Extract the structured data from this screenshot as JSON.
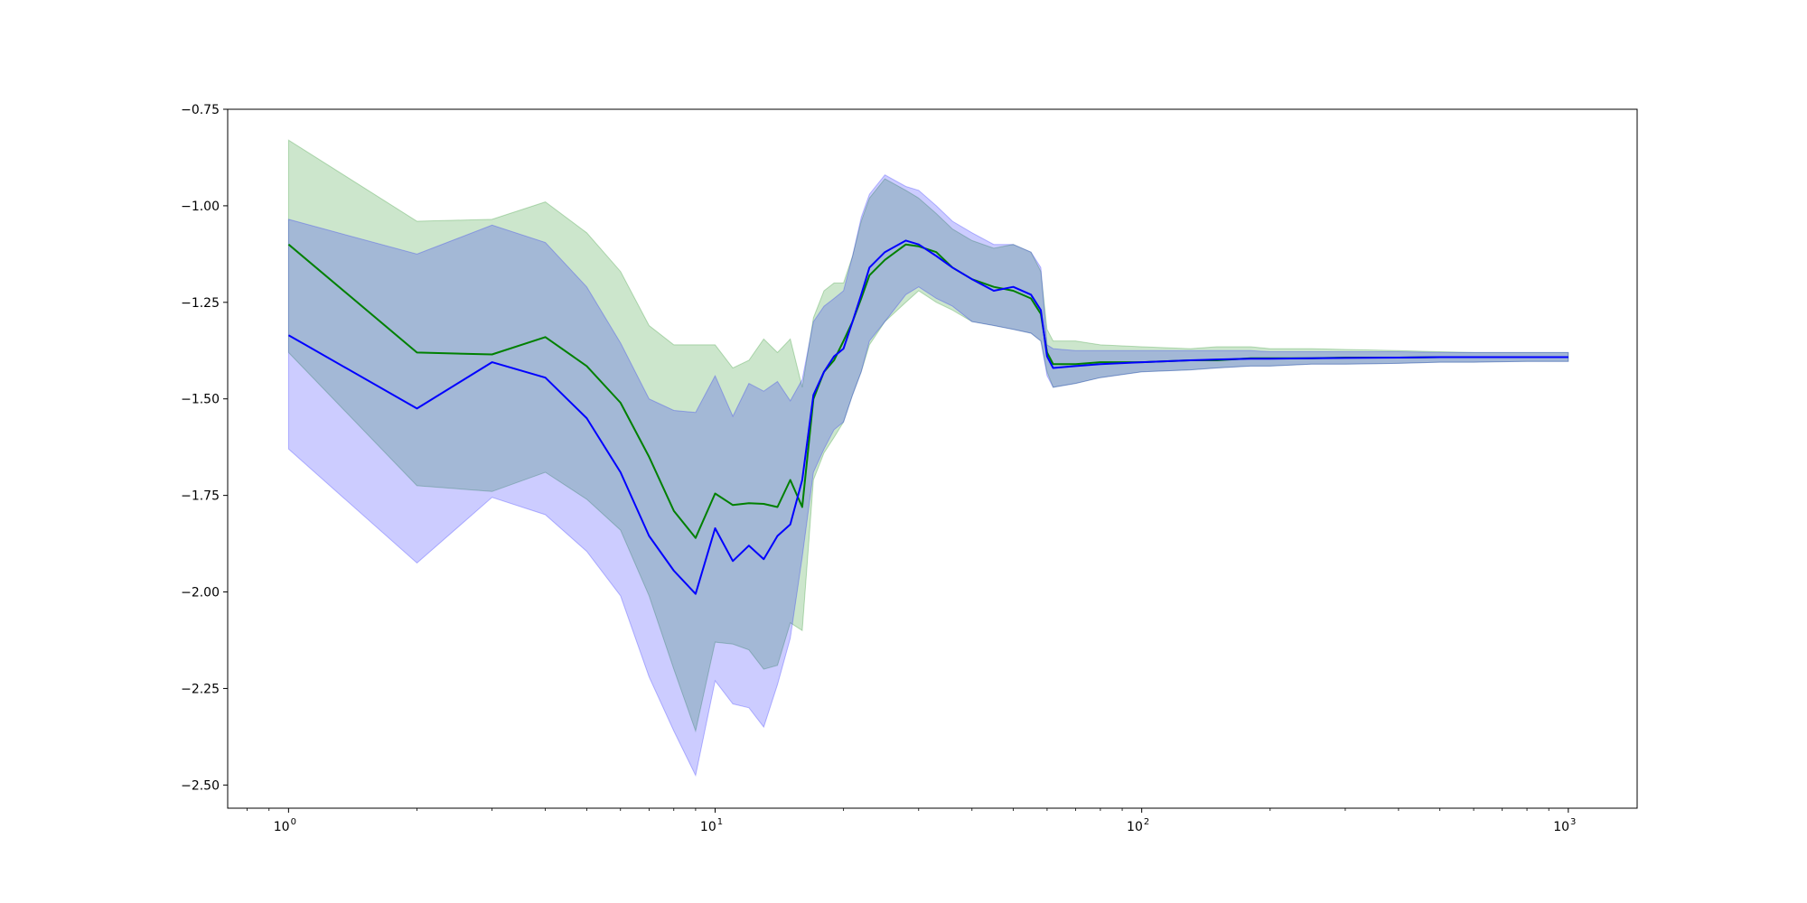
{
  "chart_data": {
    "type": "line",
    "title": "",
    "xlabel": "",
    "ylabel": "",
    "x_scale": "log",
    "xlim": [
      0.72,
      1450
    ],
    "ylim": [
      -2.56,
      -0.75
    ],
    "y_ticks": [
      -0.75,
      -1.0,
      -1.25,
      -1.5,
      -1.75,
      -2.0,
      -2.25,
      -2.5
    ],
    "y_tick_labels": [
      "−0.75",
      "−1.00",
      "−1.25",
      "−1.50",
      "−1.75",
      "−2.00",
      "−2.25",
      "−2.50"
    ],
    "x_ticks": [
      {
        "value": 1,
        "base": "10",
        "exp": "0"
      },
      {
        "value": 10,
        "base": "10",
        "exp": "1"
      },
      {
        "value": 100,
        "base": "10",
        "exp": "2"
      },
      {
        "value": 1000,
        "base": "10",
        "exp": "3"
      }
    ],
    "grid": false,
    "legend": "none",
    "series": [
      {
        "color": "#008000",
        "band_color": "#008000",
        "band_opacity": 0.2,
        "x": [
          1,
          2,
          3,
          4,
          5,
          6,
          7,
          8,
          9,
          10,
          11,
          12,
          13,
          14,
          15,
          16,
          17,
          18,
          19,
          20,
          21,
          22,
          23,
          25,
          28,
          30,
          33,
          36,
          40,
          45,
          50,
          55,
          58,
          60,
          62,
          70,
          80,
          100,
          130,
          150,
          180,
          200,
          250,
          300,
          400,
          500,
          600,
          800,
          1000
        ],
        "y": [
          -1.1,
          -1.38,
          -1.385,
          -1.34,
          -1.415,
          -1.51,
          -1.65,
          -1.79,
          -1.86,
          -1.745,
          -1.775,
          -1.77,
          -1.772,
          -1.78,
          -1.71,
          -1.78,
          -1.5,
          -1.43,
          -1.4,
          -1.35,
          -1.3,
          -1.24,
          -1.18,
          -1.14,
          -1.1,
          -1.105,
          -1.12,
          -1.16,
          -1.19,
          -1.21,
          -1.22,
          -1.24,
          -1.28,
          -1.38,
          -1.41,
          -1.41,
          -1.405,
          -1.405,
          -1.4,
          -1.4,
          -1.395,
          -1.395,
          -1.395,
          -1.393,
          -1.393,
          -1.392,
          -1.392,
          -1.392,
          -1.392
        ],
        "lower": [
          -1.38,
          -1.725,
          -1.74,
          -1.69,
          -1.76,
          -1.84,
          -2.01,
          -2.2,
          -2.36,
          -2.13,
          -2.135,
          -2.15,
          -2.2,
          -2.19,
          -2.08,
          -2.1,
          -1.71,
          -1.64,
          -1.6,
          -1.56,
          -1.49,
          -1.43,
          -1.36,
          -1.3,
          -1.25,
          -1.22,
          -1.25,
          -1.27,
          -1.3,
          -1.31,
          -1.32,
          -1.33,
          -1.35,
          -1.43,
          -1.47,
          -1.46,
          -1.445,
          -1.43,
          -1.425,
          -1.42,
          -1.415,
          -1.415,
          -1.41,
          -1.41,
          -1.408,
          -1.405,
          -1.405,
          -1.403,
          -1.403
        ],
        "upper": [
          -0.83,
          -1.04,
          -1.035,
          -0.99,
          -1.07,
          -1.17,
          -1.31,
          -1.36,
          -1.36,
          -1.36,
          -1.42,
          -1.4,
          -1.345,
          -1.38,
          -1.345,
          -1.47,
          -1.29,
          -1.22,
          -1.2,
          -1.2,
          -1.13,
          -1.04,
          -0.98,
          -0.93,
          -0.96,
          -0.98,
          -1.02,
          -1.06,
          -1.09,
          -1.11,
          -1.1,
          -1.12,
          -1.17,
          -1.32,
          -1.35,
          -1.35,
          -1.36,
          -1.365,
          -1.37,
          -1.365,
          -1.365,
          -1.37,
          -1.37,
          -1.372,
          -1.375,
          -1.378,
          -1.38,
          -1.38,
          -1.38
        ]
      },
      {
        "color": "#0000ff",
        "band_color": "#0000ff",
        "band_opacity": 0.2,
        "x": [
          1,
          2,
          3,
          4,
          5,
          6,
          7,
          8,
          9,
          10,
          11,
          12,
          13,
          14,
          15,
          16,
          17,
          18,
          19,
          20,
          21,
          22,
          23,
          25,
          28,
          30,
          33,
          36,
          40,
          45,
          50,
          55,
          58,
          60,
          62,
          70,
          80,
          100,
          130,
          150,
          180,
          200,
          250,
          300,
          400,
          500,
          600,
          800,
          1000
        ],
        "y": [
          -1.335,
          -1.525,
          -1.405,
          -1.445,
          -1.55,
          -1.69,
          -1.855,
          -1.945,
          -2.005,
          -1.835,
          -1.92,
          -1.88,
          -1.915,
          -1.855,
          -1.825,
          -1.71,
          -1.49,
          -1.43,
          -1.39,
          -1.37,
          -1.3,
          -1.23,
          -1.16,
          -1.12,
          -1.09,
          -1.1,
          -1.13,
          -1.16,
          -1.19,
          -1.22,
          -1.21,
          -1.23,
          -1.27,
          -1.39,
          -1.42,
          -1.415,
          -1.41,
          -1.405,
          -1.4,
          -1.398,
          -1.396,
          -1.396,
          -1.395,
          -1.394,
          -1.393,
          -1.392,
          -1.392,
          -1.392,
          -1.392
        ],
        "lower": [
          -1.63,
          -1.925,
          -1.755,
          -1.8,
          -1.895,
          -2.01,
          -2.22,
          -2.36,
          -2.475,
          -2.23,
          -2.29,
          -2.3,
          -2.35,
          -2.24,
          -2.12,
          -1.91,
          -1.69,
          -1.63,
          -1.58,
          -1.56,
          -1.49,
          -1.43,
          -1.35,
          -1.3,
          -1.23,
          -1.21,
          -1.24,
          -1.26,
          -1.3,
          -1.31,
          -1.32,
          -1.33,
          -1.35,
          -1.44,
          -1.47,
          -1.46,
          -1.445,
          -1.43,
          -1.425,
          -1.42,
          -1.415,
          -1.415,
          -1.41,
          -1.41,
          -1.408,
          -1.405,
          -1.405,
          -1.403,
          -1.403
        ],
        "upper": [
          -1.035,
          -1.125,
          -1.05,
          -1.095,
          -1.21,
          -1.355,
          -1.5,
          -1.53,
          -1.535,
          -1.44,
          -1.545,
          -1.46,
          -1.48,
          -1.455,
          -1.505,
          -1.45,
          -1.3,
          -1.26,
          -1.24,
          -1.22,
          -1.13,
          -1.03,
          -0.97,
          -0.92,
          -0.95,
          -0.96,
          -1.0,
          -1.04,
          -1.07,
          -1.1,
          -1.1,
          -1.12,
          -1.16,
          -1.36,
          -1.37,
          -1.375,
          -1.375,
          -1.375,
          -1.375,
          -1.375,
          -1.375,
          -1.378,
          -1.378,
          -1.378,
          -1.378,
          -1.38,
          -1.38,
          -1.38,
          -1.38
        ]
      }
    ]
  }
}
